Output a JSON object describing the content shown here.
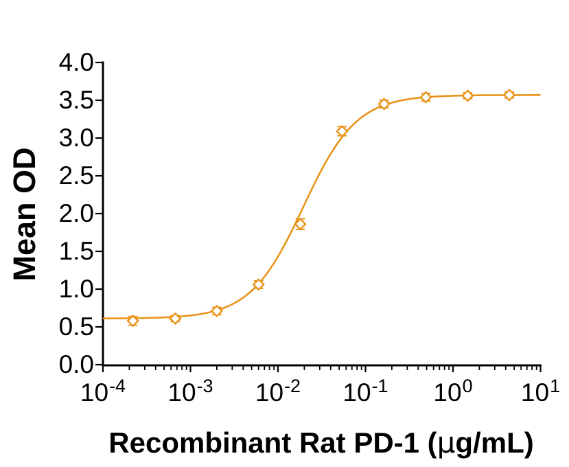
{
  "chart_data": {
    "type": "scatter",
    "title": "",
    "ylabel": "Mean OD",
    "xlabel": "Recombinant Rat PD-1 (μg/mL)",
    "xlabel_parts": {
      "prefix": "Recombinant Rat PD-1 (",
      "mu": "μ",
      "suffix": "g/mL)"
    },
    "x_scale": "log10",
    "xlim": [
      0.0001,
      10
    ],
    "ylim": [
      0.0,
      4.0
    ],
    "grid": false,
    "legend": "none",
    "axis_color": "#000000",
    "y_ticks": [
      "0.0",
      "0.5",
      "1.0",
      "1.5",
      "2.0",
      "2.5",
      "3.0",
      "3.5",
      "4.0"
    ],
    "x_ticks": [
      {
        "base": "10",
        "exp": "-4"
      },
      {
        "base": "10",
        "exp": "-3"
      },
      {
        "base": "10",
        "exp": "-2"
      },
      {
        "base": "10",
        "exp": "-1"
      },
      {
        "base": "10",
        "exp": "0"
      },
      {
        "base": "10",
        "exp": "1"
      }
    ],
    "series": [
      {
        "name": "Mean OD",
        "marker": "open-diamond",
        "color": "#E8941C",
        "x": [
          0.00022,
          0.00067,
          0.002,
          0.006,
          0.018,
          0.054,
          0.163,
          0.49,
          1.47,
          4.4
        ],
        "y": [
          0.58,
          0.61,
          0.71,
          1.06,
          1.86,
          3.09,
          3.45,
          3.54,
          3.56,
          3.57
        ],
        "yerr": [
          0.06,
          0.04,
          0.05,
          0.05,
          0.07,
          0.06,
          0.05,
          0.05,
          0.04,
          0.04
        ]
      }
    ],
    "fit": {
      "model": "4PL-logistic",
      "bottom": 0.61,
      "top": 3.57,
      "log10_ec50": -1.71,
      "slope": 3.3,
      "color": "#E8941C"
    }
  }
}
